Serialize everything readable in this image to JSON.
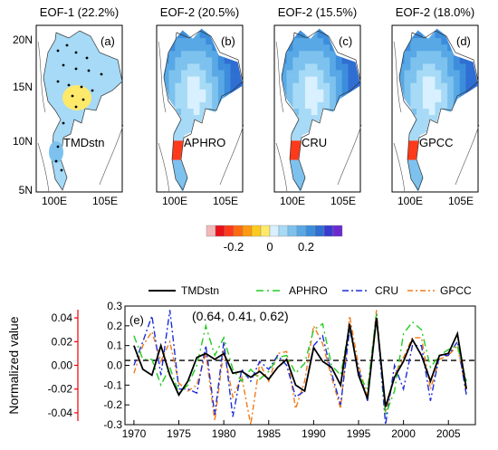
{
  "maps": {
    "panels": [
      {
        "title": "EOF-1 (22.2%)",
        "tag": "(a)",
        "label": "TMDstn",
        "kind": "stations"
      },
      {
        "title": "EOF-2 (20.5%)",
        "tag": "(b)",
        "label": "APHRO",
        "kind": "grid"
      },
      {
        "title": "EOF-2 (15.5%)",
        "tag": "(c)",
        "label": "CRU",
        "kind": "grid"
      },
      {
        "title": "EOF-2 (18.0%)",
        "tag": "(d)",
        "label": "GPCC",
        "kind": "grid"
      }
    ],
    "lat_ticks": [
      "20N",
      "15N",
      "10N",
      "5N"
    ],
    "lon_ticks": [
      "100E",
      "105E"
    ],
    "colorbar": {
      "colors": [
        "#f2b8b8",
        "#e8121a",
        "#ff3a1a",
        "#ff6a10",
        "#ff9a10",
        "#ffca20",
        "#ffe96a",
        "#d8f0ff",
        "#a6daf6",
        "#7dc2ee",
        "#58a8e6",
        "#3c8edc",
        "#2f6ed2",
        "#3a3ad0",
        "#6a2ad0"
      ],
      "tick_labels": [
        "-0.2",
        "0",
        "0.2"
      ]
    }
  },
  "chart_data": {
    "type": "line",
    "title": "",
    "annotation": "(0.64, 0.41, 0.62)",
    "panel_label": "(e)",
    "ylabel": "Normalized value",
    "x": [
      1970,
      1971,
      1972,
      1973,
      1974,
      1975,
      1976,
      1977,
      1978,
      1979,
      1980,
      1981,
      1982,
      1983,
      1984,
      1985,
      1986,
      1987,
      1988,
      1989,
      1990,
      1991,
      1992,
      1993,
      1994,
      1995,
      1996,
      1997,
      1998,
      1999,
      2000,
      2001,
      2002,
      2003,
      2004,
      2005,
      2006,
      2007
    ],
    "xlim": [
      1969,
      2008
    ],
    "xticks": [
      1970,
      1975,
      1980,
      1985,
      1990,
      1995,
      2000,
      2005
    ],
    "ylim_right": [
      -0.3,
      0.3
    ],
    "yticks_right": [
      "0.3",
      "0.2",
      "0.1",
      "0.0",
      "-0.1",
      "-0.2",
      "-0.3"
    ],
    "ylim_left": [
      -0.05,
      0.05
    ],
    "yticks_left": [
      "0.04",
      "0.02",
      "0.00",
      "-0.02",
      "-0.04"
    ],
    "reference_line": 0.025,
    "grid": false,
    "legend_position": "top",
    "series": [
      {
        "name": "TMDstn",
        "color": "#000000",
        "dash": "",
        "values": [
          0.1,
          -0.02,
          -0.05,
          0.1,
          -0.05,
          -0.15,
          -0.08,
          0.04,
          0.06,
          0.03,
          0.06,
          -0.04,
          -0.03,
          -0.06,
          -0.03,
          -0.07,
          -0.01,
          0.03,
          -0.1,
          -0.13,
          0.09,
          0.02,
          -0.01,
          -0.1,
          0.21,
          -0.05,
          -0.17,
          0.24,
          -0.21,
          -0.06,
          0.02,
          0.13,
          0.05,
          -0.08,
          0.05,
          0.06,
          0.16,
          -0.12
        ]
      },
      {
        "name": "APHRO",
        "color": "#22cc22",
        "dash": "8,4,2,4",
        "values": [
          0.15,
          0.03,
          0.03,
          -0.1,
          -0.01,
          -0.14,
          -0.1,
          0.0,
          0.2,
          0.05,
          0.14,
          -0.02,
          -0.08,
          -0.02,
          -0.07,
          -0.03,
          0.04,
          0.05,
          -0.04,
          0.01,
          0.18,
          0.21,
          0.0,
          -0.05,
          0.2,
          -0.05,
          -0.12,
          0.26,
          -0.25,
          -0.13,
          0.16,
          0.22,
          0.18,
          -0.01,
          0.05,
          0.08,
          0.1,
          -0.08
        ]
      },
      {
        "name": "CRU",
        "color": "#1a2ed8",
        "dash": "7,3,2,3",
        "values": [
          0.0,
          0.12,
          0.25,
          -0.05,
          0.28,
          -0.12,
          -0.12,
          -0.14,
          0.1,
          -0.25,
          0.12,
          -0.26,
          -0.02,
          -0.08,
          0.02,
          -0.02,
          0.05,
          0.0,
          -0.16,
          -0.13,
          0.1,
          0.15,
          -0.04,
          -0.2,
          0.18,
          -0.02,
          -0.18,
          0.26,
          -0.3,
          0.0,
          -0.12,
          0.1,
          0.1,
          -0.18,
          0.05,
          0.05,
          0.12,
          -0.15
        ]
      },
      {
        "name": "GPCC",
        "color": "#f07a1a",
        "dash": "6,3,2,3",
        "values": [
          -0.04,
          0.1,
          0.17,
          0.02,
          0.12,
          -0.09,
          -0.13,
          -0.1,
          0.06,
          -0.28,
          0.08,
          -0.16,
          -0.06,
          -0.3,
          0.01,
          -0.08,
          0.06,
          0.07,
          -0.22,
          -0.08,
          0.2,
          0.11,
          -0.06,
          -0.22,
          0.25,
          0.0,
          -0.16,
          0.28,
          -0.24,
          -0.05,
          0.04,
          0.14,
          0.14,
          -0.12,
          0.03,
          0.05,
          0.1,
          -0.14
        ]
      }
    ]
  }
}
